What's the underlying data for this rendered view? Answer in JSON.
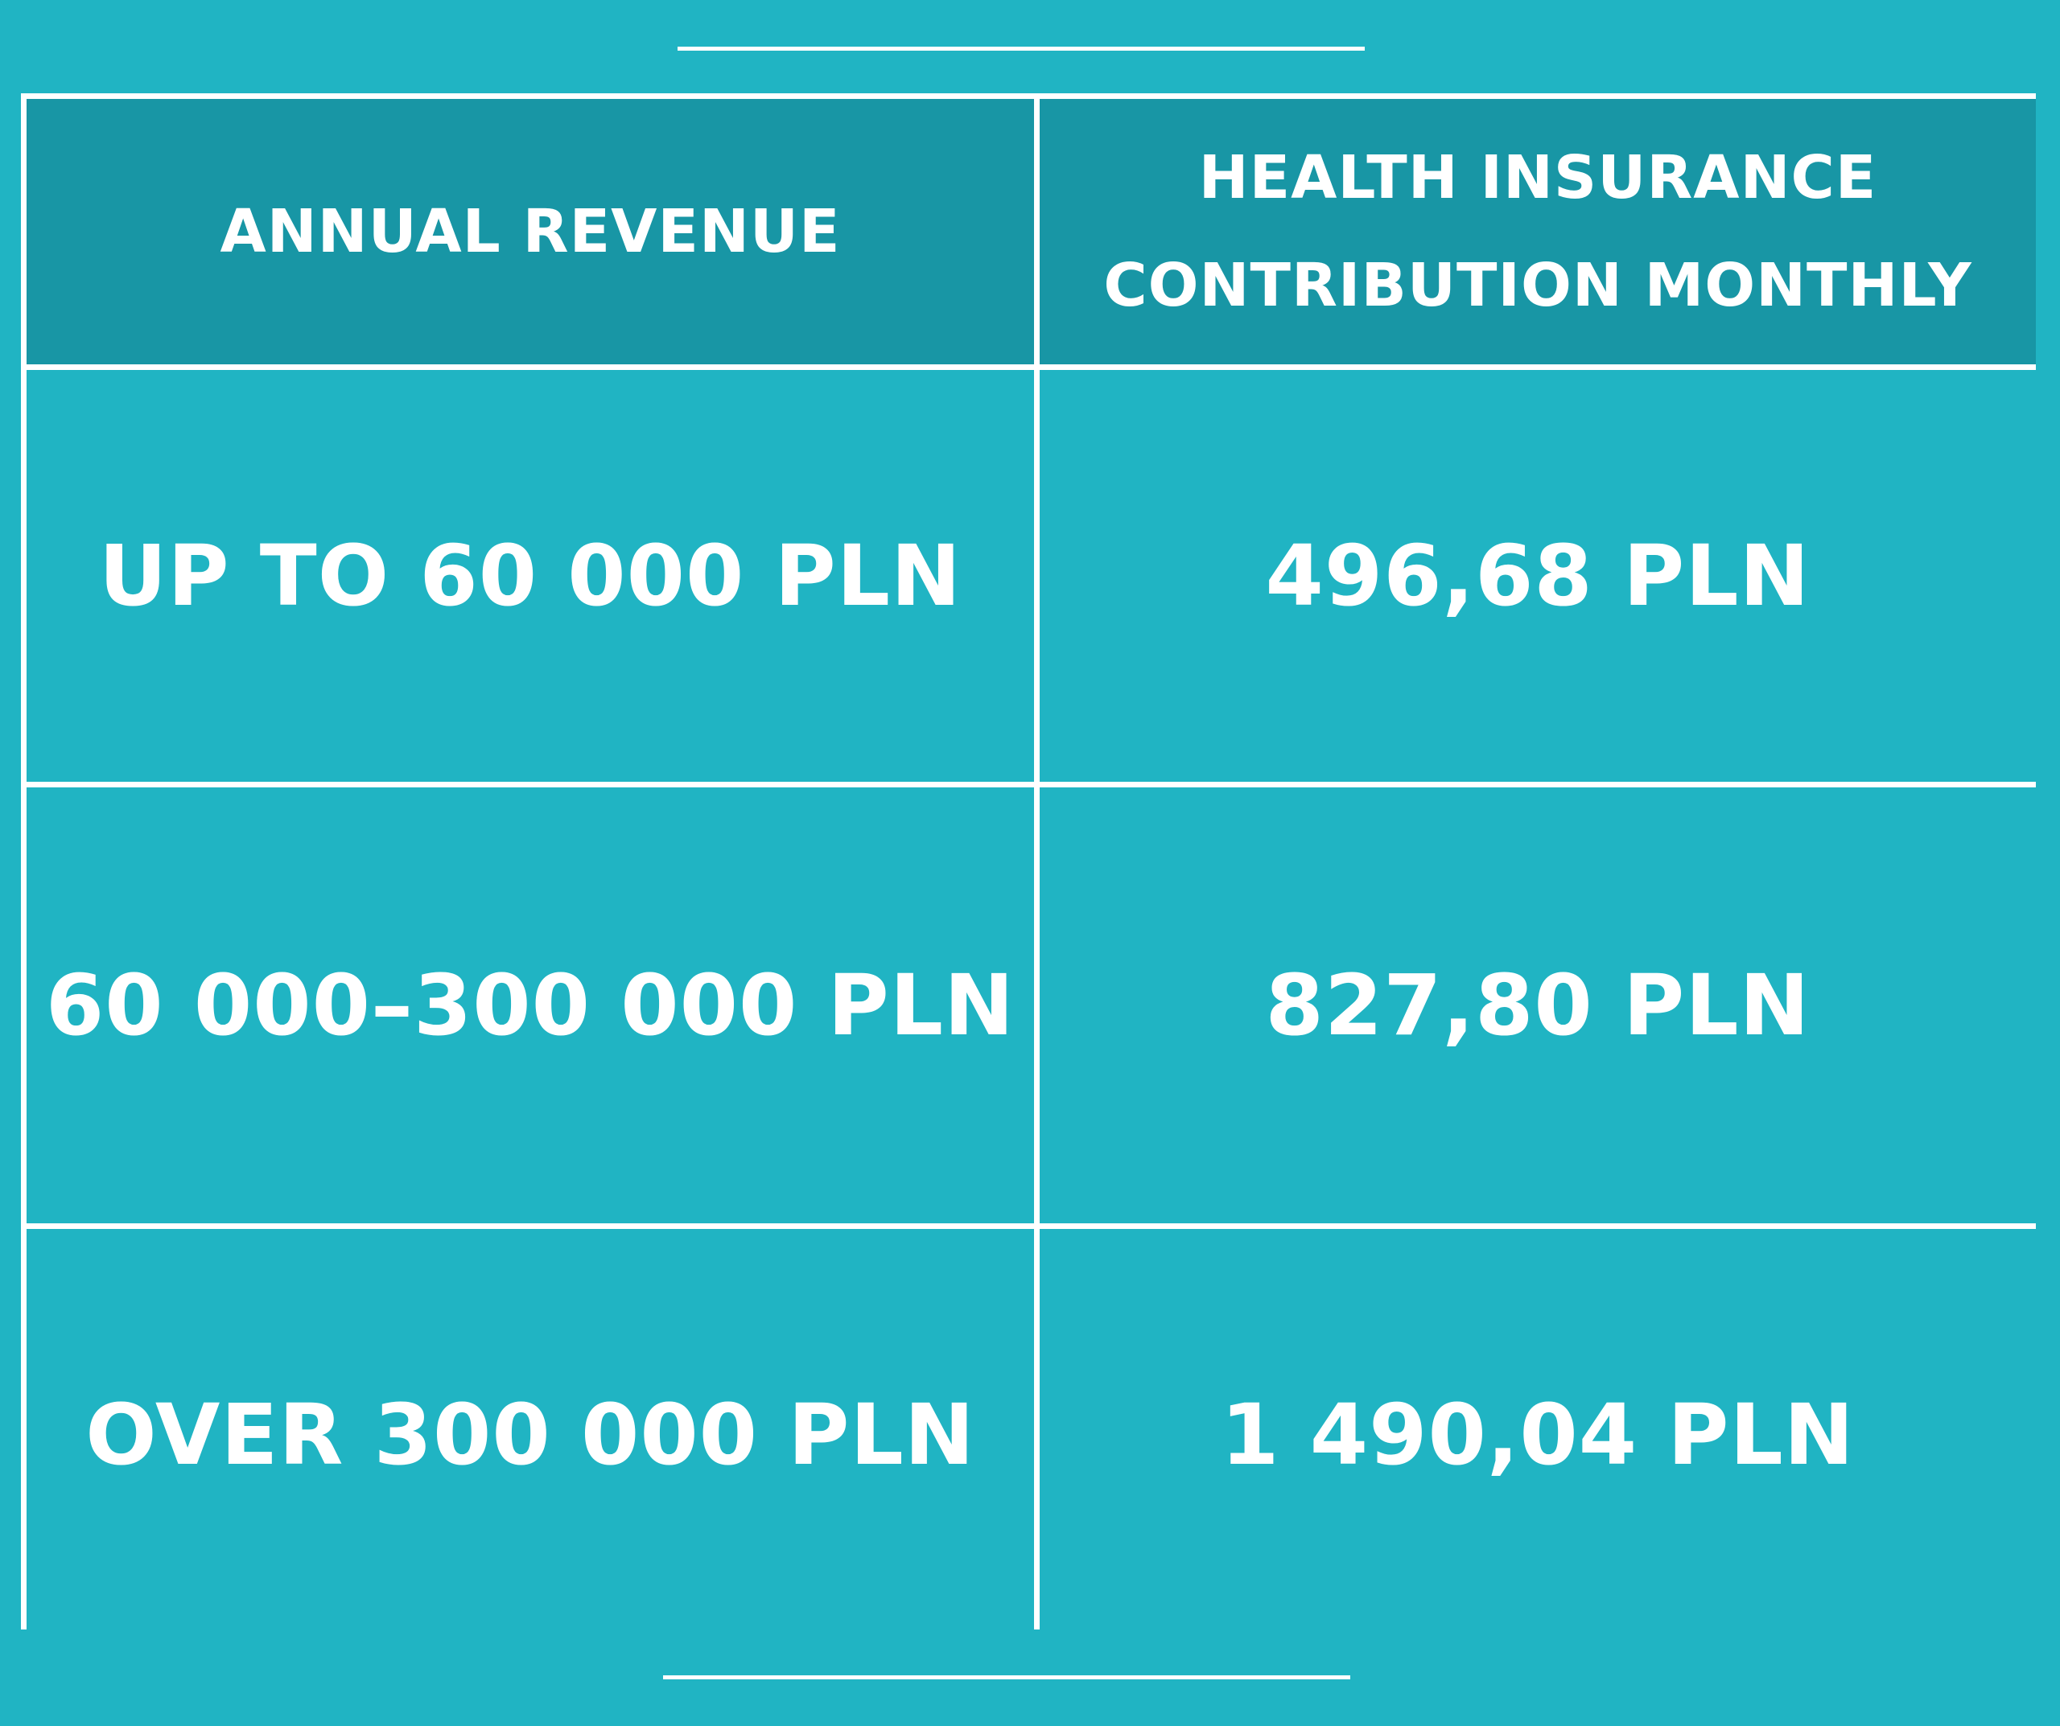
{
  "table": {
    "headers": [
      "ANNUAL REVENUE",
      "HEALTH INSURANCE CONTRIBUTION MONTHLY"
    ],
    "rows": [
      [
        "UP TO 60 000 PLN",
        "496,68 PLN"
      ],
      [
        "60 000–300 000 PLN",
        "827,80 PLN"
      ],
      [
        "OVER 300 000 PLN",
        "1 490,04 PLN"
      ]
    ]
  },
  "colors": {
    "background": "#20b4c3",
    "header_background": "#1896a5",
    "lines": "#ffffff",
    "text": "#ffffff"
  }
}
